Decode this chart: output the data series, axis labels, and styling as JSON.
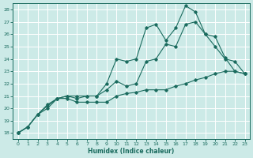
{
  "xlabel": "Humidex (Indice chaleur)",
  "bg_color": "#cceae7",
  "grid_color": "#ffffff",
  "line_color": "#1a6b5e",
  "xlim": [
    -0.5,
    23.5
  ],
  "ylim": [
    17.5,
    28.5
  ],
  "xticks": [
    0,
    1,
    2,
    3,
    4,
    5,
    6,
    7,
    8,
    9,
    10,
    11,
    12,
    13,
    14,
    15,
    16,
    17,
    18,
    19,
    20,
    21,
    22,
    23
  ],
  "yticks": [
    18,
    19,
    20,
    21,
    22,
    23,
    24,
    25,
    26,
    27,
    28
  ],
  "series": [
    [
      18.0,
      18.5,
      19.5,
      20.0,
      20.8,
      20.8,
      20.5,
      20.5,
      20.5,
      20.5,
      21.0,
      21.2,
      21.3,
      21.5,
      21.5,
      21.5,
      21.8,
      22.0,
      22.3,
      22.5,
      22.8,
      23.0,
      23.0,
      22.8
    ],
    [
      18.0,
      18.5,
      19.5,
      20.2,
      20.8,
      21.0,
      20.8,
      21.0,
      21.0,
      21.5,
      22.2,
      21.8,
      22.0,
      23.8,
      24.0,
      25.2,
      25.0,
      26.8,
      27.0,
      26.0,
      25.0,
      24.0,
      23.8,
      22.8
    ],
    [
      18.0,
      18.5,
      19.5,
      20.3,
      20.8,
      21.0,
      21.0,
      21.0,
      21.0,
      22.0,
      24.0,
      23.8,
      24.0,
      26.5,
      26.8,
      25.5,
      26.5,
      28.3,
      27.8,
      26.0,
      25.8,
      24.1,
      23.0,
      22.8
    ]
  ]
}
